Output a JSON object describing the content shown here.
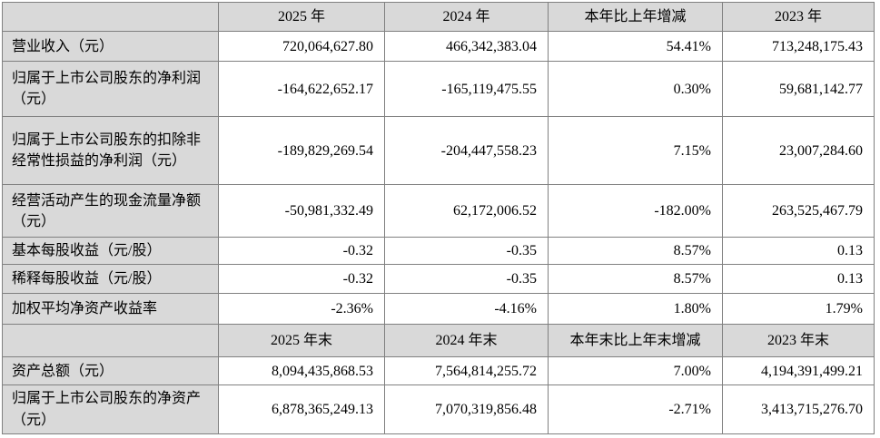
{
  "colors": {
    "header_and_label_bg": "#d9d9d9",
    "grid_border": "#808080",
    "cell_bg": "#ffffff",
    "text": "#000000"
  },
  "table": {
    "period_header": {
      "corner": "",
      "cols": [
        "2025 年",
        "2024 年",
        "本年比上年增减",
        "2023 年"
      ]
    },
    "period_rows": [
      {
        "label": "营业收入（元）",
        "values": [
          "720,064,627.80",
          "466,342,383.04",
          "54.41%",
          "713,248,175.43"
        ]
      },
      {
        "label": "归属于上市公司股东的净利润（元）",
        "values": [
          "-164,622,652.17",
          "-165,119,475.55",
          "0.30%",
          "59,681,142.77"
        ]
      },
      {
        "label": "归属于上市公司股东的扣除非经常性损益的净利润（元）",
        "values": [
          "-189,829,269.54",
          "-204,447,558.23",
          "7.15%",
          "23,007,284.60"
        ]
      },
      {
        "label": "经营活动产生的现金流量净额（元）",
        "values": [
          "-50,981,332.49",
          "62,172,006.52",
          "-182.00%",
          "263,525,467.79"
        ]
      },
      {
        "label": "基本每股收益（元/股）",
        "values": [
          "-0.32",
          "-0.35",
          "8.57%",
          "0.13"
        ]
      },
      {
        "label": "稀释每股收益（元/股）",
        "values": [
          "-0.32",
          "-0.35",
          "8.57%",
          "0.13"
        ]
      },
      {
        "label": "加权平均净资产收益率",
        "values": [
          "-2.36%",
          "-4.16%",
          "1.80%",
          "1.79%"
        ]
      }
    ],
    "eop_header": {
      "corner": "",
      "cols": [
        "2025 年末",
        "2024 年末",
        "本年末比上年末增减",
        "2023 年末"
      ]
    },
    "eop_rows": [
      {
        "label": "资产总额（元）",
        "values": [
          "8,094,435,868.53",
          "7,564,814,255.72",
          "7.00%",
          "4,194,391,499.21"
        ]
      },
      {
        "label": "归属于上市公司股东的净资产（元）",
        "values": [
          "6,878,365,249.13",
          "7,070,319,856.48",
          "-2.71%",
          "3,413,715,276.70"
        ]
      }
    ]
  }
}
